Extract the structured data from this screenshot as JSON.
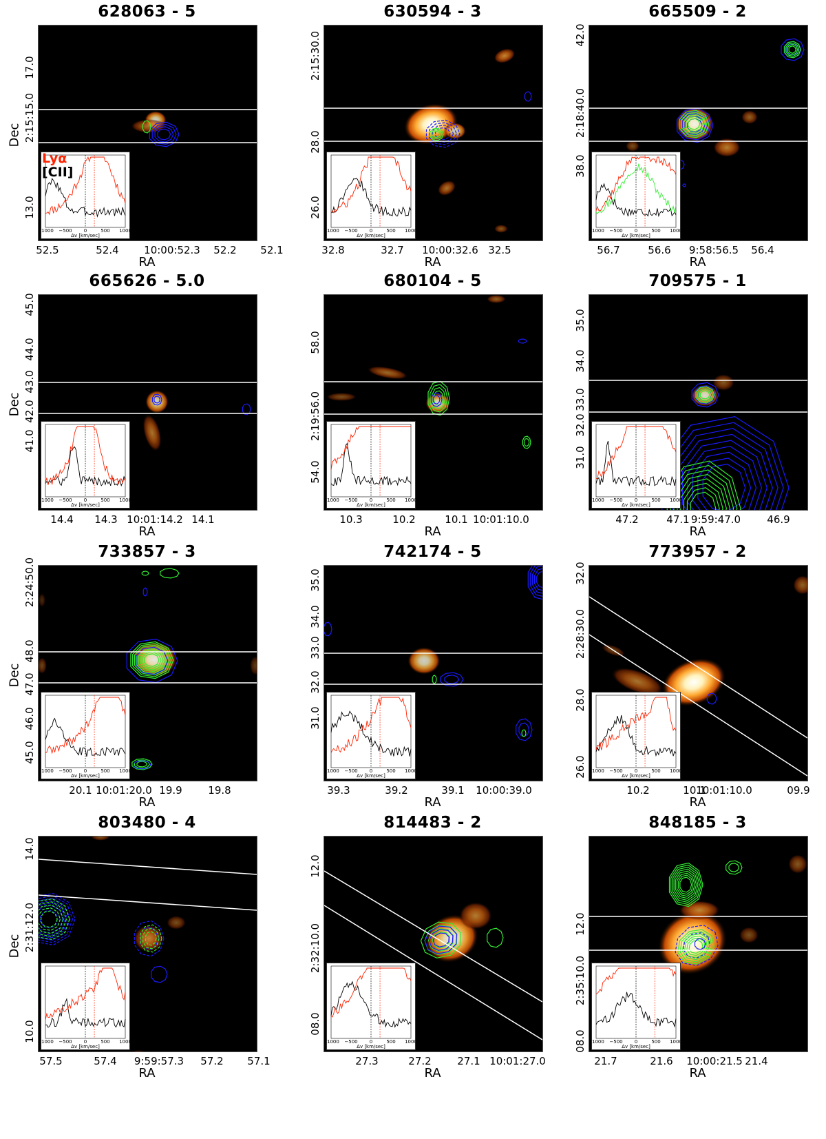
{
  "figure": {
    "x_axis_label": "RA",
    "y_axis_label": "Dec",
    "inset_axis_label": "Δv [km/sec]",
    "inset_ticks": [
      "−1000",
      "−500",
      "0",
      "500",
      "1000"
    ],
    "legend": {
      "lya": "Lyα",
      "cii": "[CII]"
    },
    "colors": {
      "lya": "#ff2200",
      "cii": "#000000",
      "contour_blue": "#1a1aff",
      "contour_green": "#33ee33",
      "slit": "#ffffff"
    }
  },
  "panels": [
    {
      "title": "628063 - 5",
      "xticks": [
        "52.5",
        "52.4",
        "10:00:52.3",
        "52.2",
        "52.1"
      ],
      "yticks": [
        "17.0",
        "2:15:15.0",
        "13.0"
      ]
    },
    {
      "title": "630594 - 3",
      "xticks": [
        "32.8",
        "32.7",
        "10:00:32.6",
        "32.5"
      ],
      "yticks": [
        "2:15:30.0",
        "28.0",
        "26.0"
      ]
    },
    {
      "title": "665509 - 2",
      "xticks": [
        "56.7",
        "56.6",
        "9:58:56.5",
        "56.4"
      ],
      "yticks": [
        "42.0",
        "2:18:40.0",
        "38.0"
      ]
    },
    {
      "title": "665626 - 5.0",
      "xticks": [
        "14.4",
        "14.3",
        "10:01:14.2",
        "14.1"
      ],
      "yticks": [
        "45.0",
        "44.0",
        "43.0",
        "42.0",
        "41.0"
      ]
    },
    {
      "title": "680104 - 5",
      "xticks": [
        "10.3",
        "10.2",
        "10.1",
        "10:01:10.0"
      ],
      "yticks": [
        "58.0",
        "2:19:56.0",
        "54.0"
      ]
    },
    {
      "title": "709575 - 1",
      "xticks": [
        "47.2",
        "47.1",
        "9:59:47.0",
        "46.9"
      ],
      "yticks": [
        "35.0",
        "34.0",
        "33.0",
        "32.0",
        "31.0"
      ]
    },
    {
      "title": "733857 - 3",
      "xticks": [
        "20.1",
        "10:01:20.0",
        "19.9",
        "19.8"
      ],
      "yticks": [
        "2:24:50.0",
        "48.0",
        "47.0",
        "46.0",
        "45.0"
      ]
    },
    {
      "title": "742174 - 5",
      "xticks": [
        "39.3",
        "39.2",
        "39.1",
        "10:00:39.0"
      ],
      "yticks": [
        "35.0",
        "34.0",
        "33.0",
        "32.0",
        "31.0"
      ]
    },
    {
      "title": "773957 - 2",
      "xticks": [
        "10.2",
        "10.1",
        "10:01:10.0",
        "09.9"
      ],
      "yticks": [
        "32.0",
        "2:28:30.0",
        "28.0",
        "26.0"
      ]
    },
    {
      "title": "803480 - 4",
      "xticks": [
        "57.5",
        "57.4",
        "9:59:57.3",
        "57.2",
        "57.1"
      ],
      "yticks": [
        "14.0",
        "2:31:12.0",
        "10.0"
      ]
    },
    {
      "title": "814483 - 2",
      "xticks": [
        "27.3",
        "27.2",
        "27.1",
        "10:01:27.0"
      ],
      "yticks": [
        "12.0",
        "2:32:10.0",
        "08.0"
      ]
    },
    {
      "title": "848185 - 3",
      "xticks": [
        "21.7",
        "21.6",
        "10:00:21.5",
        "21.4"
      ],
      "yticks": [
        "12.0",
        "2:35:10.0",
        "08.0"
      ]
    }
  ]
}
